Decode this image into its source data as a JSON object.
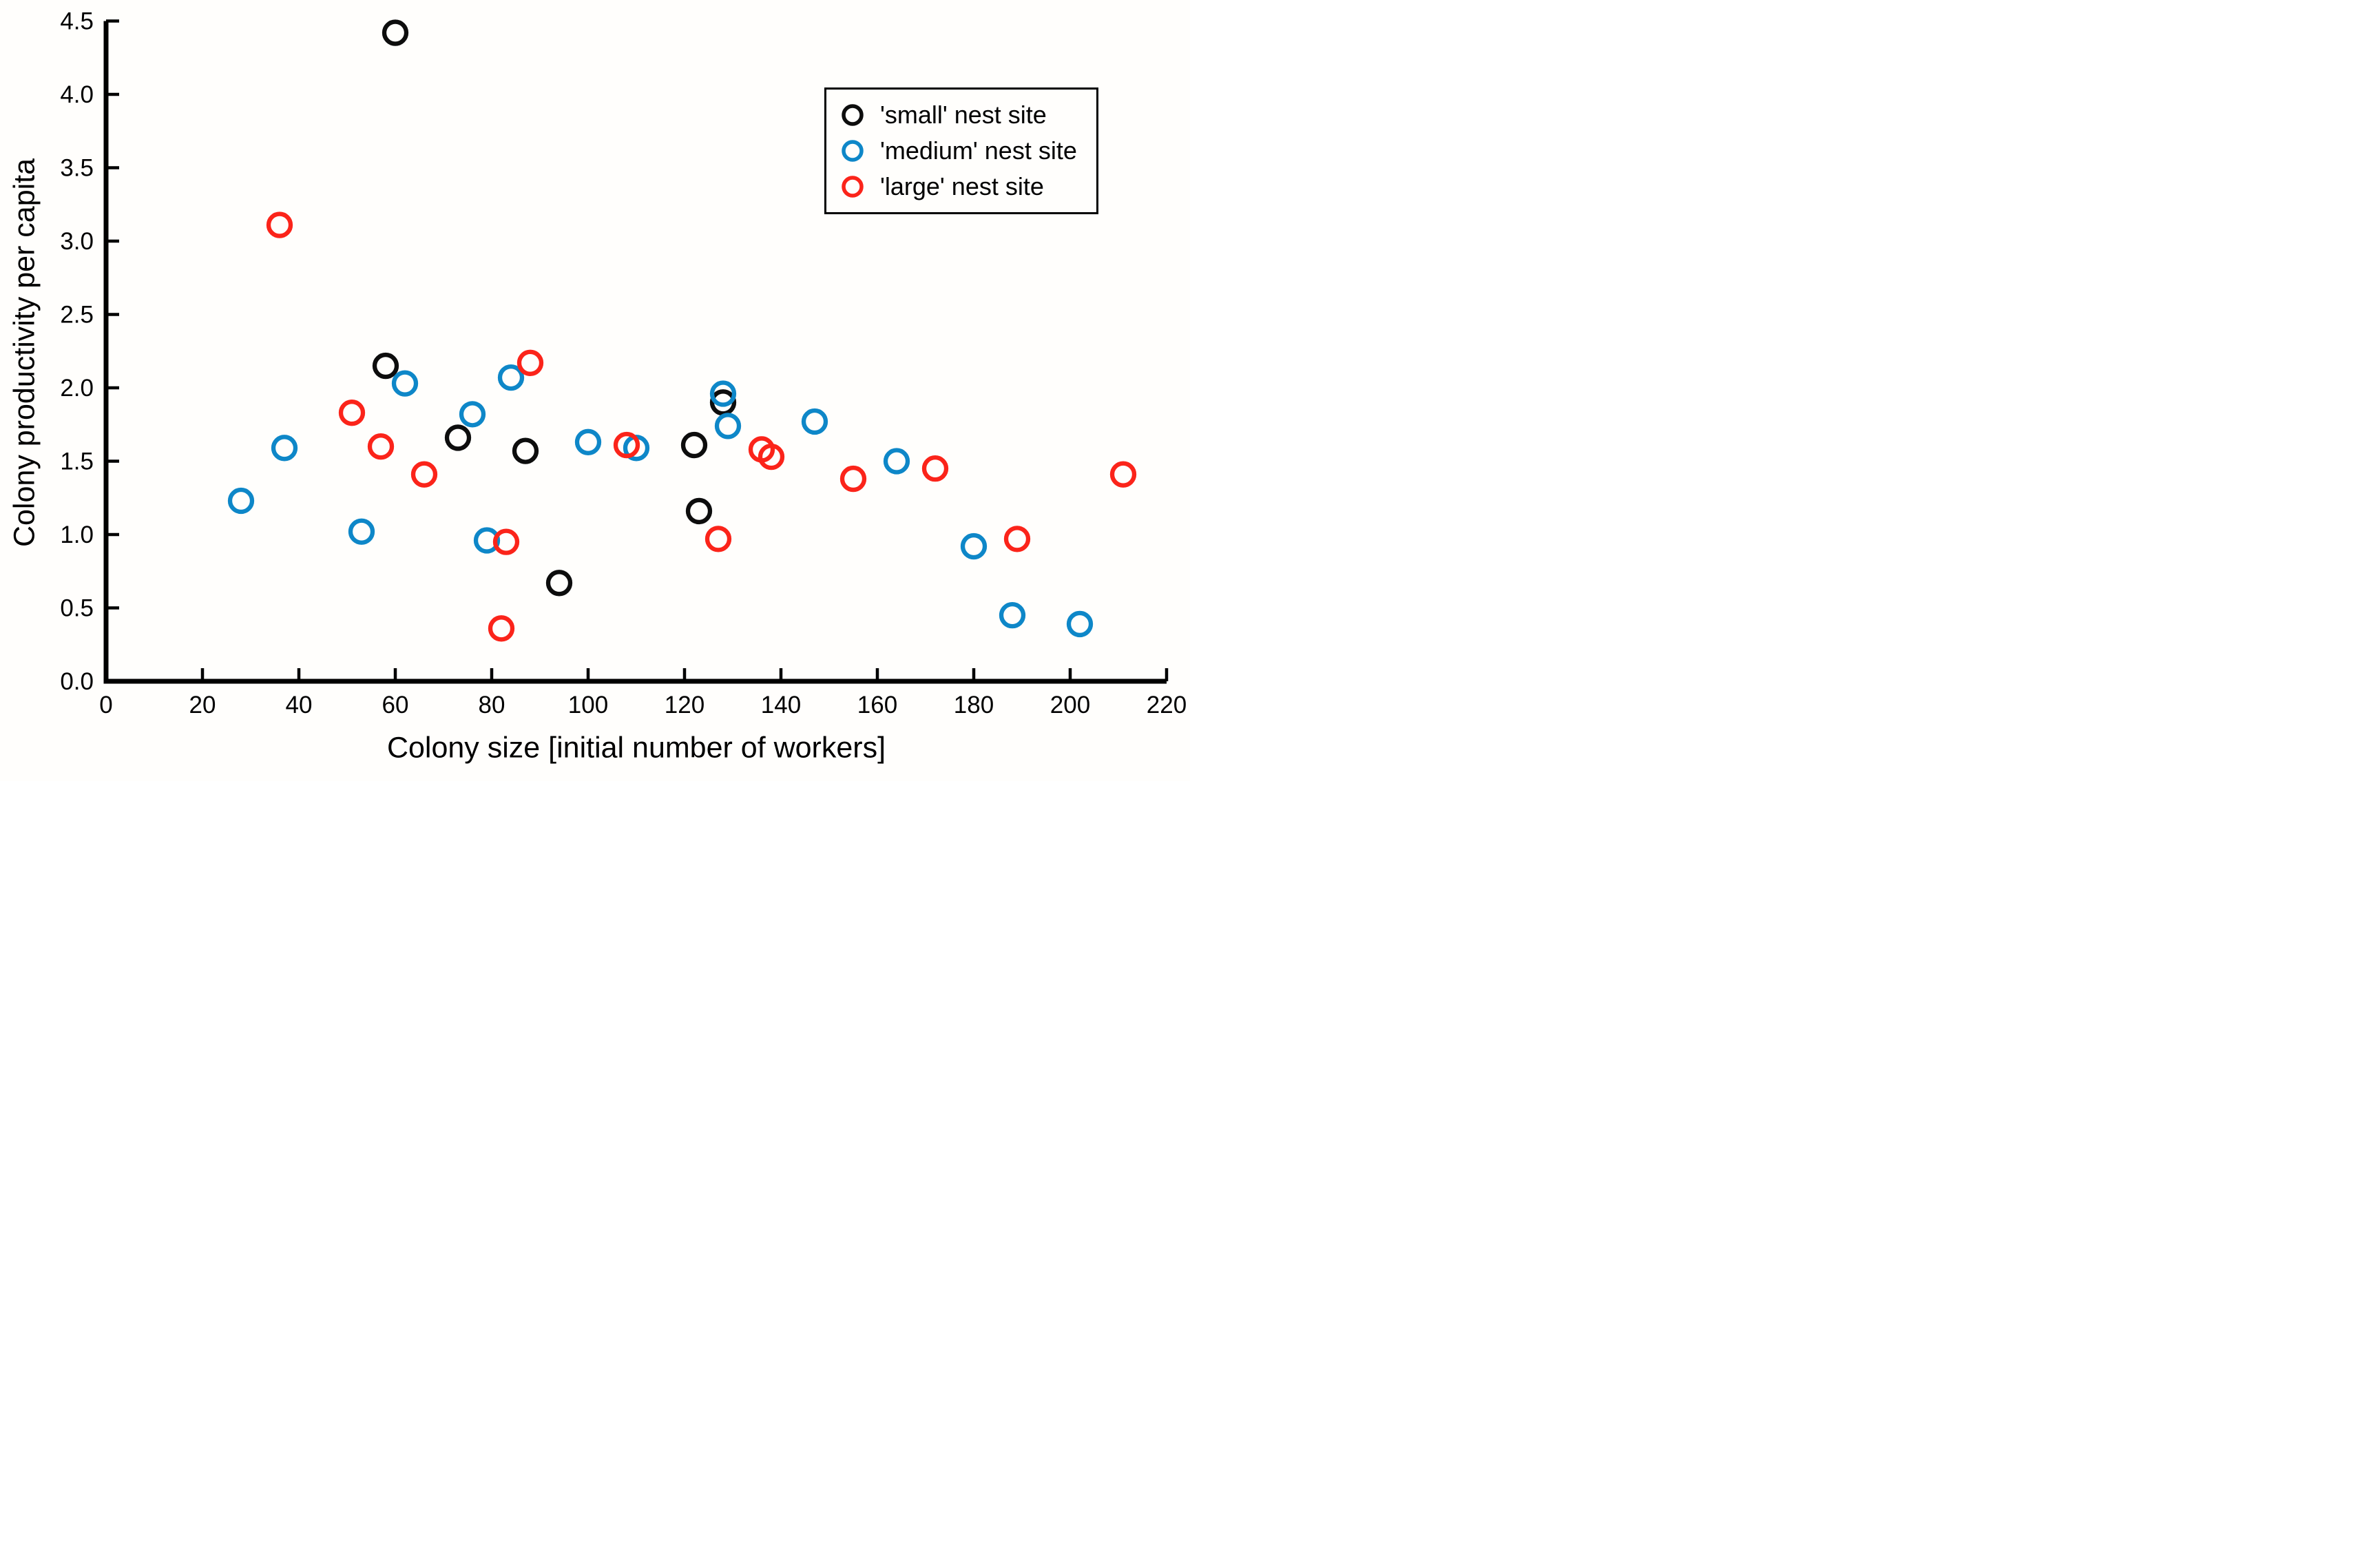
{
  "chart_data": {
    "type": "scatter",
    "title": "",
    "xlabel": "Colony size [initial number of workers]",
    "ylabel": "Colony productivity per capita",
    "xlim": [
      0,
      220
    ],
    "ylim": [
      0,
      4.5
    ],
    "grid": false,
    "legend_position": "upper right",
    "axis_color": "#000000",
    "x_ticks": [
      {
        "value": 0,
        "label": "0"
      },
      {
        "value": 20,
        "label": "20"
      },
      {
        "value": 40,
        "label": "40"
      },
      {
        "value": 60,
        "label": "60"
      },
      {
        "value": 80,
        "label": "80"
      },
      {
        "value": 100,
        "label": "100"
      },
      {
        "value": 120,
        "label": "120"
      },
      {
        "value": 140,
        "label": "140"
      },
      {
        "value": 160,
        "label": "160"
      },
      {
        "value": 180,
        "label": "180"
      },
      {
        "value": 200,
        "label": "200"
      },
      {
        "value": 220,
        "label": "220"
      }
    ],
    "y_ticks": [
      {
        "value": 0.0,
        "label": "0.0"
      },
      {
        "value": 0.5,
        "label": "0.5"
      },
      {
        "value": 1.0,
        "label": "1.0"
      },
      {
        "value": 1.5,
        "label": "1.5"
      },
      {
        "value": 2.0,
        "label": "2.0"
      },
      {
        "value": 2.5,
        "label": "2.5"
      },
      {
        "value": 3.0,
        "label": "3.0"
      },
      {
        "value": 3.5,
        "label": "3.5"
      },
      {
        "value": 4.0,
        "label": "4.0"
      },
      {
        "value": 4.5,
        "label": "4.5"
      }
    ],
    "series": [
      {
        "key": "small",
        "name": "'small' nest site",
        "color": "#0d0d0d",
        "points": [
          [
            58,
            2.15
          ],
          [
            60,
            4.42
          ],
          [
            73,
            1.66
          ],
          [
            87,
            1.57
          ],
          [
            94,
            0.67
          ],
          [
            122,
            1.61
          ],
          [
            123,
            1.16
          ],
          [
            128,
            1.9
          ]
        ]
      },
      {
        "key": "medium",
        "name": "'medium' nest site",
        "color": "#0e87c8",
        "points": [
          [
            28,
            1.23
          ],
          [
            37,
            1.59
          ],
          [
            53,
            1.02
          ],
          [
            62,
            2.03
          ],
          [
            76,
            1.82
          ],
          [
            79,
            0.96
          ],
          [
            84,
            2.07
          ],
          [
            100,
            1.63
          ],
          [
            110,
            1.59
          ],
          [
            128,
            1.96
          ],
          [
            129,
            1.74
          ],
          [
            147,
            1.77
          ],
          [
            164,
            1.5
          ],
          [
            180,
            0.92
          ],
          [
            188,
            0.45
          ],
          [
            202,
            0.39
          ]
        ]
      },
      {
        "key": "large",
        "name": "'large' nest site",
        "color": "#fb241a",
        "points": [
          [
            36,
            3.11
          ],
          [
            51,
            1.83
          ],
          [
            57,
            1.6
          ],
          [
            66,
            1.41
          ],
          [
            82,
            0.36
          ],
          [
            83,
            0.95
          ],
          [
            88,
            2.17
          ],
          [
            108,
            1.61
          ],
          [
            127,
            0.97
          ],
          [
            136,
            1.58
          ],
          [
            138,
            1.53
          ],
          [
            155,
            1.38
          ],
          [
            172,
            1.45
          ],
          [
            189,
            0.97
          ],
          [
            211,
            1.41
          ]
        ]
      }
    ]
  }
}
